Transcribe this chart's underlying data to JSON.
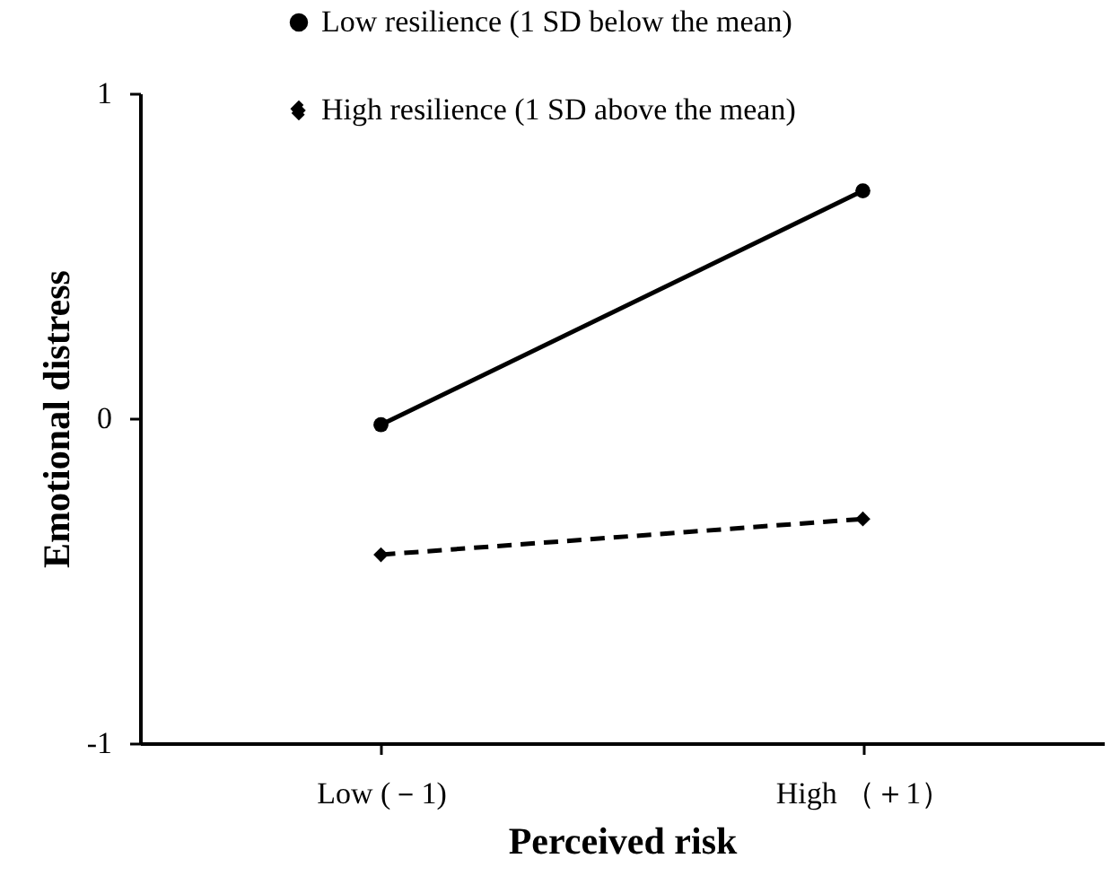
{
  "chart_data": {
    "type": "line",
    "xlabel": "Perceived risk",
    "ylabel": "Emotional distress",
    "categories": [
      "Low (－1)",
      "High （＋1）"
    ],
    "series": [
      {
        "name": "Low  resilience (1 SD below the mean)",
        "color": "#000000",
        "values": [
          -0.02,
          0.7
        ],
        "line_style": "solid",
        "marker": "circle"
      },
      {
        "name": "High resilience (1 SD above the mean)",
        "color": "#000000",
        "values": [
          -0.42,
          -0.31
        ],
        "line_style": "dashed",
        "marker": "diamond"
      }
    ],
    "ylim": [
      -1,
      1
    ],
    "yticks": [
      {
        "value": -1,
        "label": "-1"
      },
      {
        "value": 0,
        "label": "0"
      },
      {
        "value": 1,
        "label": "1"
      }
    ],
    "grid": false,
    "legend": "top"
  }
}
